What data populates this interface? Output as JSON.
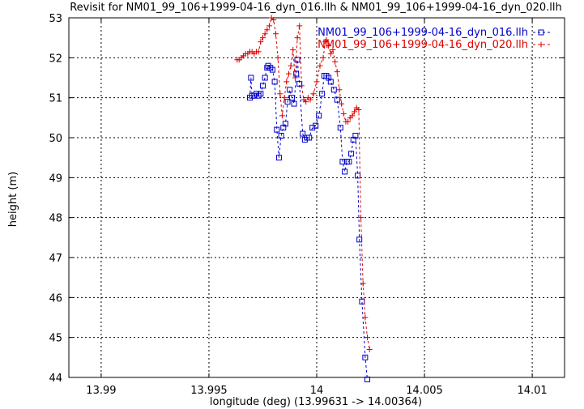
{
  "chart_data": {
    "type": "line",
    "title": "Revisit for NM01_99_106+1999-04-16_dyn_016.llh & NM01_99_106+1999-04-16_dyn_020.llh",
    "xlabel": "longitude (deg) (13.99631 -> 14.00364)",
    "ylabel": "height (m)",
    "xlim": [
      13.9885,
      14.0115
    ],
    "ylim": [
      44,
      53
    ],
    "x_ticks": [
      13.99,
      13.995,
      14.0,
      14.005,
      14.01
    ],
    "x_tick_labels": [
      "13.99",
      "13.995",
      "14",
      "14.005",
      "14.01"
    ],
    "y_ticks": [
      44,
      45,
      46,
      47,
      48,
      49,
      50,
      51,
      52,
      53
    ],
    "y_tick_labels": [
      "44",
      "45",
      "46",
      "47",
      "48",
      "49",
      "50",
      "51",
      "52",
      "53"
    ],
    "grid": true,
    "legend_position": "top-right",
    "series": [
      {
        "name": "NM01_99_106+1999-04-16_dyn_016.llh",
        "color": "#0000cc",
        "marker": "square",
        "points": [
          [
            13.9969,
            51.0
          ],
          [
            13.99695,
            51.5
          ],
          [
            13.997,
            51.05
          ],
          [
            13.9971,
            51.05
          ],
          [
            13.9972,
            51.1
          ],
          [
            13.9973,
            51.05
          ],
          [
            13.9974,
            51.1
          ],
          [
            13.9975,
            51.3
          ],
          [
            13.9976,
            51.5
          ],
          [
            13.9977,
            51.75
          ],
          [
            13.99775,
            51.8
          ],
          [
            13.99785,
            51.75
          ],
          [
            13.99795,
            51.7
          ],
          [
            13.99805,
            51.4
          ],
          [
            13.99815,
            50.2
          ],
          [
            13.99825,
            49.5
          ],
          [
            13.99835,
            50.05
          ],
          [
            13.99845,
            50.25
          ],
          [
            13.99855,
            50.35
          ],
          [
            13.99865,
            50.9
          ],
          [
            13.99875,
            51.2
          ],
          [
            13.99885,
            51.0
          ],
          [
            13.99895,
            50.85
          ],
          [
            13.99905,
            51.6
          ],
          [
            13.9991,
            51.95
          ],
          [
            13.9992,
            51.35
          ],
          [
            13.99935,
            50.1
          ],
          [
            13.99945,
            49.95
          ],
          [
            13.99955,
            50.0
          ],
          [
            13.99965,
            50.0
          ],
          [
            13.9998,
            50.25
          ],
          [
            13.99995,
            50.3
          ],
          [
            14.0001,
            50.55
          ],
          [
            14.00025,
            51.1
          ],
          [
            14.00035,
            51.55
          ],
          [
            14.00045,
            51.55
          ],
          [
            14.00055,
            51.5
          ],
          [
            14.00065,
            51.4
          ],
          [
            14.0008,
            51.2
          ],
          [
            14.00095,
            50.95
          ],
          [
            14.0011,
            50.25
          ],
          [
            14.0012,
            49.4
          ],
          [
            14.0013,
            49.15
          ],
          [
            14.0014,
            49.4
          ],
          [
            14.0015,
            49.4
          ],
          [
            14.0016,
            49.6
          ],
          [
            14.0017,
            49.95
          ],
          [
            14.0018,
            50.05
          ],
          [
            14.0019,
            49.05
          ],
          [
            14.00198,
            47.45
          ],
          [
            14.0021,
            45.9
          ],
          [
            14.00225,
            44.5
          ],
          [
            14.00235,
            43.95
          ]
        ]
      },
      {
        "name": "NM01_99_106+1999-04-16_dyn_020.llh",
        "color": "#dd0000",
        "marker": "plus",
        "points": [
          [
            13.99631,
            51.95
          ],
          [
            13.9964,
            51.95
          ],
          [
            13.9965,
            52.0
          ],
          [
            13.9966,
            52.05
          ],
          [
            13.9967,
            52.1
          ],
          [
            13.9968,
            52.1
          ],
          [
            13.9969,
            52.15
          ],
          [
            13.997,
            52.15
          ],
          [
            13.9971,
            52.1
          ],
          [
            13.9972,
            52.15
          ],
          [
            13.9973,
            52.15
          ],
          [
            13.9974,
            52.4
          ],
          [
            13.9975,
            52.5
          ],
          [
            13.9976,
            52.6
          ],
          [
            13.9977,
            52.7
          ],
          [
            13.9978,
            52.8
          ],
          [
            13.9979,
            53.0
          ],
          [
            13.998,
            52.95
          ],
          [
            13.9981,
            52.6
          ],
          [
            13.9982,
            52.0
          ],
          [
            13.9983,
            51.1
          ],
          [
            13.9984,
            50.55
          ],
          [
            13.9985,
            51.0
          ],
          [
            13.9986,
            51.4
          ],
          [
            13.9987,
            51.6
          ],
          [
            13.9988,
            51.8
          ],
          [
            13.9989,
            52.2
          ],
          [
            13.999,
            51.5
          ],
          [
            13.9991,
            52.5
          ],
          [
            13.9992,
            52.8
          ],
          [
            13.9993,
            51.3
          ],
          [
            13.9994,
            50.95
          ],
          [
            13.9995,
            50.9
          ],
          [
            13.9996,
            51.0
          ],
          [
            13.9997,
            50.95
          ],
          [
            13.99985,
            51.1
          ],
          [
            14.0,
            51.4
          ],
          [
            14.00015,
            51.8
          ],
          [
            14.0003,
            52.0
          ],
          [
            14.0004,
            52.4
          ],
          [
            14.00045,
            52.45
          ],
          [
            14.00055,
            52.3
          ],
          [
            14.00065,
            52.1
          ],
          [
            14.00075,
            52.2
          ],
          [
            14.00085,
            51.9
          ],
          [
            14.00095,
            51.65
          ],
          [
            14.00105,
            51.2
          ],
          [
            14.00115,
            50.85
          ],
          [
            14.00125,
            50.6
          ],
          [
            14.00135,
            50.4
          ],
          [
            14.00145,
            50.4
          ],
          [
            14.00155,
            50.5
          ],
          [
            14.00165,
            50.55
          ],
          [
            14.00175,
            50.65
          ],
          [
            14.00185,
            50.75
          ],
          [
            14.00195,
            50.7
          ],
          [
            14.00205,
            48.0
          ],
          [
            14.00215,
            46.35
          ],
          [
            14.00225,
            45.5
          ],
          [
            14.00235,
            45.0
          ],
          [
            14.00245,
            44.7
          ]
        ]
      }
    ]
  }
}
